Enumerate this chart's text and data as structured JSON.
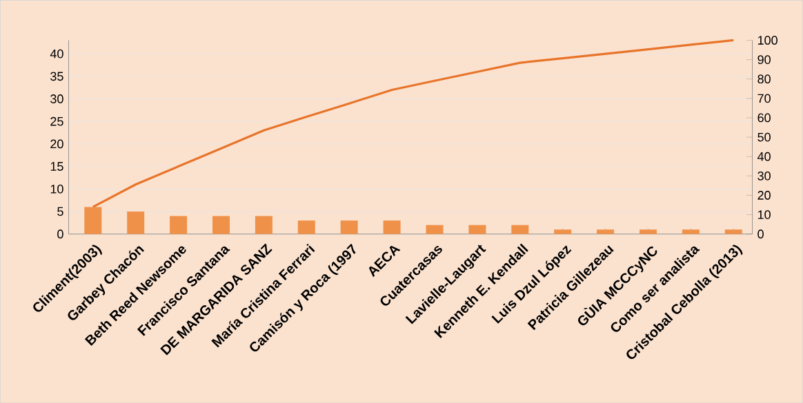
{
  "chart_data": {
    "type": "bar",
    "categories": [
      "Climent(2003)",
      "Garbey Chacón",
      "Beth Reed Newsome",
      "Francisco Santana",
      "DE MARGARIDA SANZ",
      "María Cristina Ferrari",
      "Camisón y Roca (1997",
      "AECA",
      "Cuatercasas",
      "Lavielle-Laugart",
      "Kenneth E. Kendall",
      "Luis Dzul López",
      "Patricia Gillezeau",
      "GÙIA  MCCCyNC",
      "Como ser analista",
      "Cristobal Cebolla (2013)"
    ],
    "series": [
      {
        "color": "#f0914a",
        "values": [
          6,
          5,
          4,
          4,
          4,
          3,
          3,
          3,
          2,
          2,
          2,
          1,
          1,
          1,
          1,
          1
        ]
      },
      {
        "type": "line",
        "axis": "y2",
        "color": "#e8742a",
        "values": [
          14,
          25.6,
          34.9,
          44.2,
          53.5,
          60.5,
          67.4,
          74.4,
          79.1,
          83.7,
          88.4,
          90.7,
          93,
          95.3,
          97.7,
          100
        ]
      }
    ],
    "ylim": [
      0,
      43
    ],
    "yticks": [
      0,
      5,
      10,
      15,
      20,
      25,
      30,
      35,
      40
    ],
    "y2lim": [
      0,
      100
    ],
    "y2ticks": [
      0,
      10,
      20,
      30,
      40,
      50,
      60,
      70,
      80,
      90,
      100
    ],
    "grid": "y",
    "marker": "none"
  }
}
